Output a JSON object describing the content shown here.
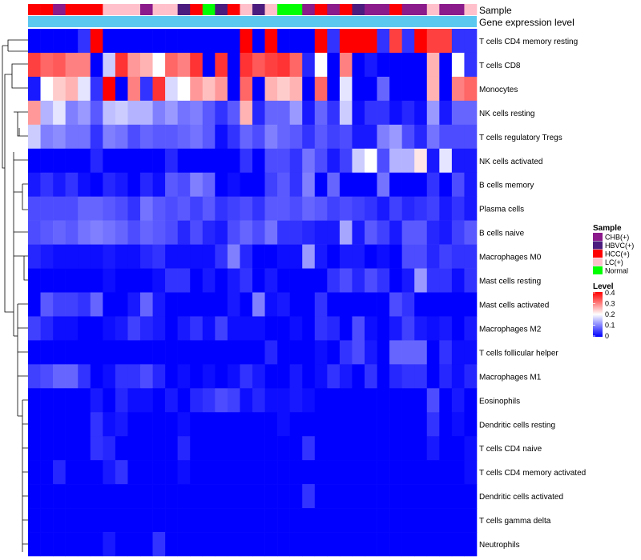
{
  "chart_data": {
    "type": "heatmap",
    "title": "",
    "annotation_tracks": {
      "sample_label": "Sample",
      "expression_label": "Gene expression level"
    },
    "sample_categories": [
      {
        "name": "CHB(+)",
        "color": "#8b1a8b"
      },
      {
        "name": "HBVC(+)",
        "color": "#4b1c7e"
      },
      {
        "name": "HCC(+)",
        "color": "#ff0000"
      },
      {
        "name": "LC(+)",
        "color": "#ffc0cb"
      },
      {
        "name": "Normal",
        "color": "#00ff00"
      }
    ],
    "sample_legend_title": "Sample",
    "level_legend": {
      "title": "Level",
      "ticks": [
        "0.4",
        "0.3",
        "0.2",
        "0.1",
        "0"
      ],
      "min": 0,
      "max": 0.4,
      "colors": [
        "#0000ff",
        "#ffffff",
        "#ff0000"
      ]
    },
    "expression_track_color": "#5bc8f0",
    "columns": [
      {
        "sample": "HCC(+)"
      },
      {
        "sample": "HCC(+)"
      },
      {
        "sample": "CHB(+)"
      },
      {
        "sample": "HCC(+)"
      },
      {
        "sample": "HCC(+)"
      },
      {
        "sample": "HCC(+)"
      },
      {
        "sample": "LC(+)"
      },
      {
        "sample": "LC(+)"
      },
      {
        "sample": "LC(+)"
      },
      {
        "sample": "CHB(+)"
      },
      {
        "sample": "LC(+)"
      },
      {
        "sample": "LC(+)"
      },
      {
        "sample": "HBVC(+)"
      },
      {
        "sample": "HCC(+)"
      },
      {
        "sample": "Normal"
      },
      {
        "sample": "HBVC(+)"
      },
      {
        "sample": "HCC(+)"
      },
      {
        "sample": "LC(+)"
      },
      {
        "sample": "HBVC(+)"
      },
      {
        "sample": "LC(+)"
      },
      {
        "sample": "Normal"
      },
      {
        "sample": "Normal"
      },
      {
        "sample": "CHB(+)"
      },
      {
        "sample": "HCC(+)"
      },
      {
        "sample": "CHB(+)"
      },
      {
        "sample": "HCC(+)"
      },
      {
        "sample": "HBVC(+)"
      },
      {
        "sample": "CHB(+)"
      },
      {
        "sample": "CHB(+)"
      },
      {
        "sample": "HCC(+)"
      },
      {
        "sample": "CHB(+)"
      },
      {
        "sample": "CHB(+)"
      },
      {
        "sample": "LC(+)"
      },
      {
        "sample": "CHB(+)"
      },
      {
        "sample": "CHB(+)"
      },
      {
        "sample": "LC(+)"
      }
    ],
    "rows": [
      {
        "name": "T cells CD4 memory resting",
        "values": [
          0,
          0,
          0,
          0,
          0.04,
          0.4,
          0,
          0,
          0,
          0,
          0,
          0,
          0,
          0,
          0,
          0,
          0,
          0.4,
          0,
          0.4,
          0,
          0,
          0,
          0.4,
          0.04,
          0.4,
          0.4,
          0.4,
          0.04,
          0.35,
          0.04,
          0.4,
          0.35,
          0.35,
          0.04,
          0.04
        ]
      },
      {
        "name": "T cells CD8",
        "values": [
          0.35,
          0.32,
          0.33,
          0.3,
          0.3,
          0,
          0.16,
          0.36,
          0.28,
          0.26,
          0.2,
          0.32,
          0.3,
          0.36,
          0,
          0.36,
          0,
          0.36,
          0.33,
          0.35,
          0.36,
          0.32,
          0.03,
          0.2,
          0,
          0.3,
          0,
          0.02,
          0,
          0,
          0,
          0,
          0.26,
          0,
          0.2,
          0.04
        ]
      },
      {
        "name": "Monocytes",
        "values": [
          0.02,
          0.2,
          0.24,
          0.26,
          0.18,
          0.04,
          0.4,
          0,
          0.3,
          0.04,
          0.36,
          0.17,
          0.2,
          0.28,
          0.25,
          0.28,
          0,
          0.32,
          0,
          0.26,
          0.24,
          0.26,
          0,
          0.32,
          0,
          0.18,
          0,
          0,
          0.08,
          0,
          0,
          0,
          0.26,
          0,
          0.3,
          0.32
        ]
      },
      {
        "name": "NK cells resting",
        "values": [
          0.28,
          0.14,
          0.18,
          0.1,
          0.12,
          0.07,
          0.15,
          0.16,
          0.14,
          0.14,
          0.1,
          0.12,
          0.09,
          0.1,
          0.07,
          0.04,
          0.07,
          0.26,
          0.03,
          0.08,
          0.08,
          0.12,
          0.02,
          0.08,
          0.04,
          0.16,
          0.01,
          0.04,
          0.04,
          0.01,
          0.03,
          0.01,
          0.12,
          0.02,
          0.08,
          0.08
        ]
      },
      {
        "name": "T cells regulatory  Tregs",
        "values": [
          0.16,
          0.1,
          0.11,
          0.09,
          0.09,
          0.04,
          0.1,
          0.09,
          0.06,
          0.08,
          0.07,
          0.07,
          0.08,
          0.09,
          0.07,
          0.01,
          0.04,
          0.08,
          0.06,
          0.1,
          0.08,
          0.07,
          0.04,
          0.07,
          0.05,
          0.06,
          0.02,
          0.02,
          0.1,
          0.12,
          0.06,
          0.03,
          0.09,
          0.06,
          0.06,
          0.06
        ]
      },
      {
        "name": "NK cells activated",
        "values": [
          0,
          0,
          0,
          0,
          0,
          0.03,
          0,
          0,
          0,
          0,
          0,
          0.03,
          0,
          0,
          0,
          0,
          0,
          0.04,
          0,
          0.06,
          0.06,
          0.04,
          0.09,
          0.06,
          0.02,
          0.05,
          0.16,
          0.2,
          0.06,
          0.14,
          0.14,
          0.22,
          0.02,
          0.18,
          0.02,
          0.02
        ]
      },
      {
        "name": "B cells memory",
        "values": [
          0.02,
          0.04,
          0.02,
          0.04,
          0.01,
          0,
          0.03,
          0.02,
          0,
          0.03,
          0.01,
          0.07,
          0.06,
          0.1,
          0.08,
          0,
          0.01,
          0,
          0,
          0.05,
          0.07,
          0.04,
          0.1,
          0,
          0.08,
          0,
          0,
          0,
          0.09,
          0,
          0,
          0,
          0.04,
          0,
          0.06,
          0.02
        ]
      },
      {
        "name": "Plasma cells",
        "values": [
          0.06,
          0.06,
          0.06,
          0.06,
          0.08,
          0.08,
          0.07,
          0.06,
          0.04,
          0.09,
          0.07,
          0.06,
          0.07,
          0.05,
          0.07,
          0.04,
          0.05,
          0.06,
          0.04,
          0.07,
          0.07,
          0.06,
          0.08,
          0.07,
          0.05,
          0.06,
          0.05,
          0.04,
          0.02,
          0.05,
          0.03,
          0.04,
          0.05,
          0.02,
          0.04,
          0.02
        ]
      },
      {
        "name": "B cells naive",
        "values": [
          0.06,
          0.07,
          0.08,
          0.07,
          0.09,
          0.1,
          0.09,
          0.08,
          0.06,
          0.08,
          0.07,
          0.06,
          0.03,
          0.06,
          0.03,
          0.02,
          0.06,
          0.08,
          0.06,
          0.09,
          0.04,
          0.04,
          0.03,
          0.02,
          0.02,
          0.13,
          0.02,
          0.07,
          0.05,
          0.02,
          0.07,
          0.07,
          0.03,
          0.02,
          0.05,
          0.07
        ]
      },
      {
        "name": "Macrophages M0",
        "values": [
          0.03,
          0.02,
          0.01,
          0.01,
          0.01,
          0.01,
          0.02,
          0.01,
          0.01,
          0.03,
          0.04,
          0.01,
          0.01,
          0.01,
          0.01,
          0.04,
          0.1,
          0.03,
          0,
          0,
          0.01,
          0.01,
          0.12,
          0.02,
          0,
          0.02,
          0.02,
          0,
          0.01,
          0,
          0.06,
          0.06,
          0.03,
          0.05,
          0.04,
          0.04
        ]
      },
      {
        "name": "Mast cells resting",
        "values": [
          0,
          0,
          0,
          0,
          0,
          0,
          0.01,
          0,
          0,
          0,
          0.01,
          0.04,
          0.04,
          0,
          0.02,
          0,
          0.02,
          0.04,
          0,
          0.02,
          0,
          0,
          0,
          0,
          0.04,
          0.06,
          0.03,
          0.06,
          0.04,
          0,
          0.02,
          0.12,
          0.04,
          0.04,
          0.01,
          0.04
        ]
      },
      {
        "name": "Mast cells activated",
        "values": [
          0,
          0.07,
          0.05,
          0.05,
          0.04,
          0.08,
          0,
          0,
          0.02,
          0.08,
          0.02,
          0,
          0,
          0,
          0,
          0,
          0.02,
          0,
          0.1,
          0.01,
          0.02,
          0,
          0,
          0.04,
          0,
          0,
          0,
          0,
          0,
          0.06,
          0.04,
          0,
          0,
          0,
          0,
          0
        ]
      },
      {
        "name": "Macrophages M2",
        "values": [
          0.05,
          0.03,
          0.01,
          0.01,
          0,
          0,
          0.01,
          0.02,
          0.05,
          0.03,
          0.02,
          0,
          0.02,
          0.04,
          0.01,
          0.05,
          0.01,
          0.01,
          0.01,
          0,
          0,
          0.01,
          0,
          0.04,
          0.03,
          0,
          0.06,
          0.01,
          0,
          0.02,
          0.05,
          0.02,
          0.01,
          0.02,
          0,
          0.02
        ]
      },
      {
        "name": "T cells follicular helper",
        "values": [
          0,
          0,
          0,
          0,
          0,
          0,
          0,
          0,
          0,
          0,
          0,
          0,
          0,
          0,
          0,
          0,
          0,
          0,
          0,
          0.03,
          0,
          0,
          0,
          0.01,
          0,
          0.04,
          0.06,
          0.02,
          0,
          0.08,
          0.08,
          0.08,
          0,
          0.04,
          0.01,
          0.01
        ]
      },
      {
        "name": "Macrophages M1",
        "values": [
          0.05,
          0.06,
          0.08,
          0.08,
          0.04,
          0,
          0.01,
          0.04,
          0.04,
          0.06,
          0.03,
          0,
          0.01,
          0,
          0.01,
          0,
          0.01,
          0.04,
          0.02,
          0,
          0,
          0.02,
          0,
          0.01,
          0.04,
          0.02,
          0,
          0.04,
          0,
          0.03,
          0.04,
          0.04,
          0,
          0.03,
          0.01,
          0.03
        ]
      },
      {
        "name": "Eosinophils",
        "values": [
          0,
          0,
          0,
          0,
          0,
          0.02,
          0,
          0.03,
          0.01,
          0.01,
          0,
          0.02,
          0,
          0.03,
          0.04,
          0.06,
          0.05,
          0.01,
          0.03,
          0.01,
          0.01,
          0.02,
          0.01,
          0,
          0,
          0,
          0,
          0,
          0,
          0,
          0,
          0,
          0.06,
          0,
          0.02,
          0
        ]
      },
      {
        "name": "Dendritic cells resting",
        "values": [
          0,
          0,
          0,
          0,
          0,
          0.04,
          0.01,
          0.02,
          0,
          0,
          0,
          0,
          0.01,
          0,
          0,
          0,
          0,
          0,
          0,
          0,
          0.01,
          0,
          0,
          0,
          0,
          0,
          0,
          0,
          0,
          0,
          0,
          0,
          0.04,
          0,
          0.01,
          0
        ]
      },
      {
        "name": "T cells CD4 naive",
        "values": [
          0,
          0,
          0,
          0,
          0,
          0.04,
          0.03,
          0,
          0,
          0,
          0,
          0,
          0.03,
          0,
          0,
          0,
          0,
          0,
          0,
          0,
          0,
          0,
          0.04,
          0,
          0,
          0,
          0,
          0,
          0,
          0,
          0,
          0,
          0.02,
          0,
          0,
          0.01
        ]
      },
      {
        "name": "T cells CD4 memory activated",
        "values": [
          0,
          0,
          0.03,
          0,
          0,
          0,
          0.02,
          0.04,
          0,
          0,
          0,
          0,
          0.01,
          0,
          0,
          0,
          0,
          0,
          0,
          0,
          0,
          0,
          0,
          0,
          0,
          0,
          0,
          0,
          0,
          0,
          0,
          0,
          0,
          0,
          0,
          0.01
        ]
      },
      {
        "name": "Dendritic cells activated",
        "values": [
          0,
          0,
          0,
          0,
          0,
          0,
          0,
          0,
          0,
          0,
          0,
          0,
          0,
          0,
          0,
          0,
          0,
          0,
          0,
          0,
          0,
          0,
          0.04,
          0,
          0,
          0,
          0,
          0,
          0,
          0,
          0,
          0,
          0,
          0,
          0,
          0
        ]
      },
      {
        "name": "T cells gamma delta",
        "values": [
          0,
          0,
          0,
          0,
          0,
          0,
          0,
          0,
          0,
          0,
          0,
          0,
          0,
          0,
          0,
          0,
          0,
          0,
          0,
          0,
          0,
          0,
          0,
          0,
          0,
          0,
          0,
          0,
          0,
          0,
          0,
          0,
          0,
          0,
          0,
          0
        ]
      },
      {
        "name": "Neutrophils",
        "values": [
          0,
          0,
          0,
          0,
          0,
          0,
          0.02,
          0,
          0,
          0,
          0.04,
          0,
          0,
          0,
          0,
          0,
          0,
          0,
          0,
          0,
          0,
          0,
          0,
          0,
          0,
          0,
          0,
          0,
          0,
          0,
          0,
          0,
          0,
          0,
          0,
          0
        ]
      }
    ]
  }
}
